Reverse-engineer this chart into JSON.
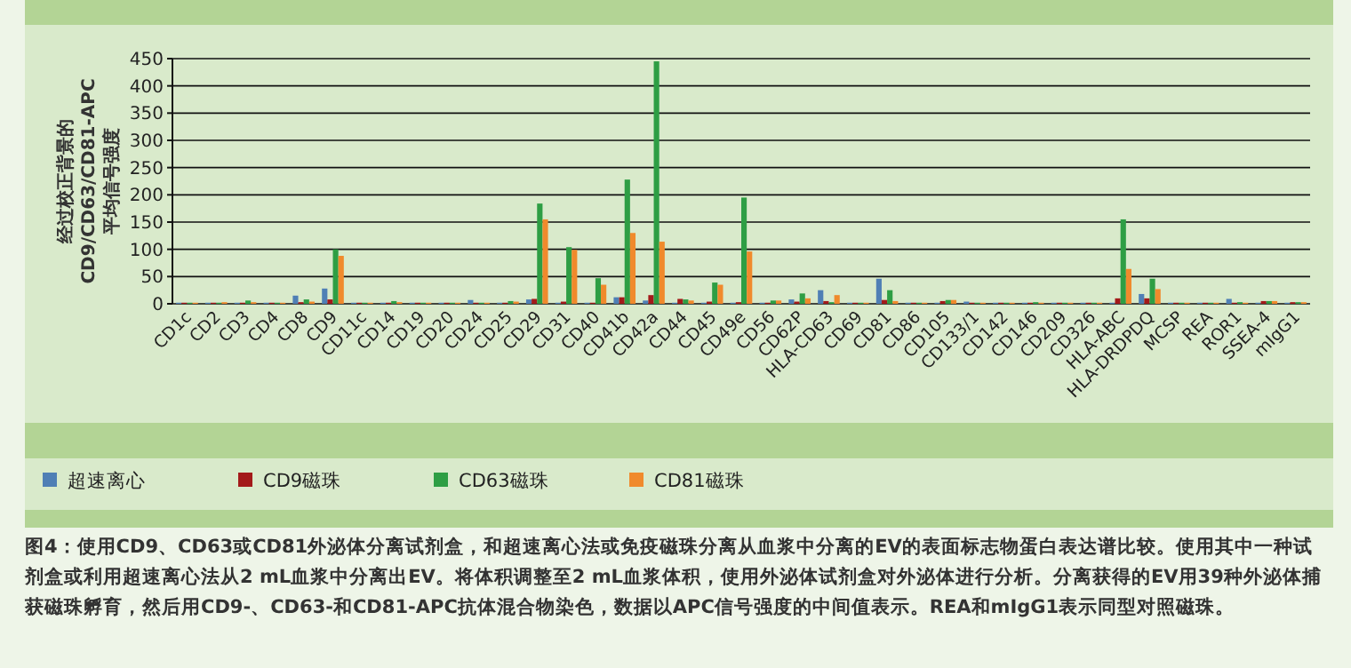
{
  "chart_data": {
    "type": "bar",
    "ylabel": "经过校正背景的\nCD9/CD63/CD81-APC\n平均信号强度",
    "categories": [
      "CD1c",
      "CD2",
      "CD3",
      "CD4",
      "CD8",
      "CD9",
      "CD11c",
      "CD14",
      "CD19",
      "CD20",
      "CD24",
      "CD25",
      "CD29",
      "CD31",
      "CD40",
      "CD41b",
      "CD42a",
      "CD44",
      "CD45",
      "CD49e",
      "CD56",
      "CD62P",
      "HLA-CD63",
      "CD69",
      "CD81",
      "CD86",
      "CD105",
      "CD133/1",
      "CD142",
      "CD146",
      "CD209",
      "CD326",
      "HLA-ABC",
      "HLA-DRDPDQ",
      "MCSP",
      "REA",
      "ROR1",
      "SSEA-4",
      "mIgG1"
    ],
    "series": [
      {
        "name": "超速离心",
        "color": "#4f7fb5",
        "values": [
          2,
          2,
          2,
          2,
          15,
          28,
          2,
          2,
          2,
          2,
          7,
          2,
          8,
          2,
          2,
          12,
          6,
          2,
          2,
          2,
          2,
          8,
          25,
          2,
          46,
          2,
          2,
          4,
          2,
          2,
          2,
          2,
          2,
          18,
          2,
          2,
          9,
          2,
          2
        ]
      },
      {
        "name": "CD9磁珠",
        "color": "#a31a1a",
        "values": [
          2,
          2,
          2,
          2,
          3,
          8,
          2,
          2,
          2,
          2,
          2,
          2,
          9,
          4,
          2,
          12,
          16,
          9,
          4,
          3,
          2,
          4,
          5,
          2,
          7,
          2,
          5,
          2,
          2,
          2,
          2,
          2,
          10,
          10,
          2,
          2,
          2,
          5,
          3
        ]
      },
      {
        "name": "CD63磁珠",
        "color": "#2e9e44",
        "values": [
          2,
          2,
          6,
          2,
          8,
          100,
          2,
          5,
          2,
          2,
          2,
          5,
          184,
          104,
          47,
          228,
          445,
          8,
          39,
          195,
          6,
          19,
          3,
          2,
          25,
          2,
          7,
          2,
          2,
          3,
          2,
          2,
          155,
          46,
          2,
          2,
          3,
          5,
          3
        ]
      },
      {
        "name": "CD81磁珠",
        "color": "#f08a2c",
        "values": [
          2,
          3,
          3,
          2,
          4,
          88,
          2,
          3,
          2,
          2,
          2,
          4,
          155,
          99,
          35,
          130,
          114,
          6,
          35,
          96,
          6,
          10,
          16,
          2,
          5,
          2,
          7,
          2,
          2,
          2,
          2,
          2,
          64,
          27,
          2,
          2,
          2,
          5,
          3
        ]
      }
    ],
    "ylim": [
      0,
      450
    ],
    "yticks": [
      0,
      50,
      100,
      150,
      200,
      250,
      300,
      350,
      400,
      450
    ],
    "grid": "y",
    "legend": "bottom",
    "annotations": [
      "图4：使用CD9、CD63或CD81外泌体分离试剂盒，和超速离心法或免疫磁珠分离从血浆中分离的EV的表面标志物蛋白表达谱比较。使用其中一种试剂盒或利用超速离心法从2 mL血浆中分离出EV。将体积调整至2 mL血浆体积，使用外泌体试剂盒对外泌体进行分析。分离获得的EV用39种外泌体捕获磁珠孵育，然后用CD9-、CD63-和CD81-APC抗体混合物染色，数据以APC信号强度的中间值表示。REA和mIgG1表示同型对照磁珠。"
    ]
  }
}
